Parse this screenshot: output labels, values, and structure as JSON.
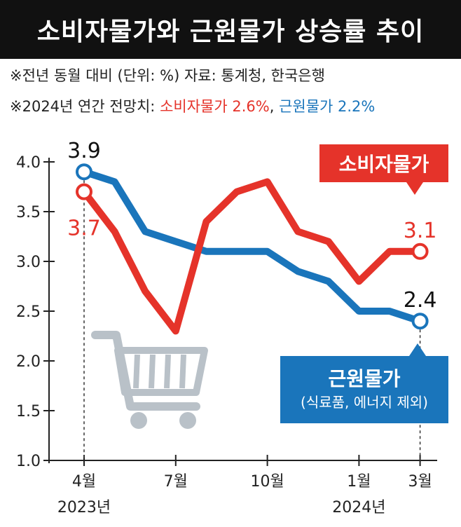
{
  "header": {
    "title": "소비자물가와 근원물가 상승률 추이"
  },
  "notes": {
    "line1": "※전년 동월 대비 (단위: %) 자료: 통계청, 한국은행",
    "line2_prefix": "※2024년 연간 전망치: ",
    "line2_red": "소비자물가 2.6%",
    "line2_sep": ", ",
    "line2_blue": "근원물가 2.2%"
  },
  "callouts": {
    "red": "소비자물가",
    "blue_main": "근원물가",
    "blue_sub": "(식료품, 에너지 제외)"
  },
  "colors": {
    "red": "#e5332a",
    "blue": "#1a75bb",
    "cart": "#b9c1c8"
  },
  "icons": {
    "cart": "shopping-cart-icon"
  },
  "chart_data": {
    "type": "line",
    "x": [
      "2023-04",
      "2023-05",
      "2023-06",
      "2023-07",
      "2023-08",
      "2023-09",
      "2023-10",
      "2023-11",
      "2023-12",
      "2024-01",
      "2024-02",
      "2024-03"
    ],
    "series": [
      {
        "name": "소비자물가",
        "color": "#e5332a",
        "values": [
          3.7,
          3.3,
          2.7,
          2.3,
          3.4,
          3.7,
          3.8,
          3.3,
          3.2,
          2.8,
          3.1,
          3.1
        ]
      },
      {
        "name": "근원물가",
        "color": "#1a75bb",
        "values": [
          3.9,
          3.8,
          3.3,
          3.2,
          3.1,
          3.1,
          3.1,
          2.9,
          2.8,
          2.5,
          2.5,
          2.4
        ]
      }
    ],
    "ylim": [
      1.0,
      4.0
    ],
    "yticks": [
      "1.0",
      "1.5",
      "2.0",
      "2.5",
      "3.0",
      "3.5",
      "4.0"
    ],
    "xtick_labels": [
      {
        "index": 0,
        "label": "4월"
      },
      {
        "index": 3,
        "label": "7월"
      },
      {
        "index": 6,
        "label": "10월"
      },
      {
        "index": 9,
        "label": "1월"
      },
      {
        "index": 11,
        "label": "3월"
      }
    ],
    "year_labels": [
      {
        "index": 0,
        "label": "2023년"
      },
      {
        "index": 9,
        "label": "2024년"
      }
    ],
    "data_labels": [
      {
        "series": 1,
        "index": 0,
        "label": "3.9"
      },
      {
        "series": 0,
        "index": 0,
        "label": "3.7"
      },
      {
        "series": 0,
        "index": 11,
        "label": "3.1"
      },
      {
        "series": 1,
        "index": 11,
        "label": "2.4"
      }
    ],
    "grid": false
  }
}
